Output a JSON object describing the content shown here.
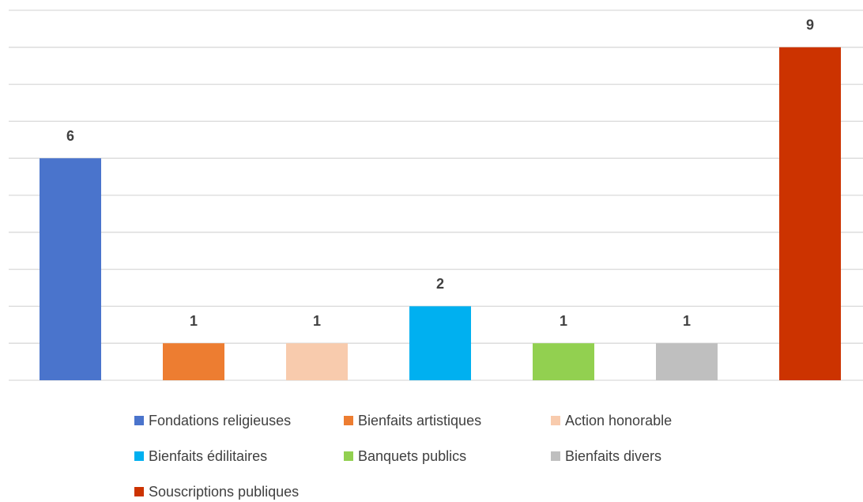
{
  "chart_data": {
    "type": "bar",
    "categories": [
      "Fondations religieuses",
      "Bienfaits artistiques",
      "Action honorable",
      "Bienfaits édilitaires",
      "Banquets publics",
      "Bienfaits divers",
      "Souscriptions publiques"
    ],
    "values": [
      6,
      1,
      1,
      2,
      1,
      1,
      9
    ],
    "colors": [
      "#4a74cc",
      "#ed7d31",
      "#f8cbad",
      "#00b0f0",
      "#92d050",
      "#bfbfbf",
      "#cc3300"
    ],
    "ylim": [
      0,
      10
    ],
    "yticks": [
      0,
      1,
      2,
      3,
      4,
      5,
      6,
      7,
      8,
      9,
      10
    ],
    "grid": true,
    "legend": "bottom"
  }
}
